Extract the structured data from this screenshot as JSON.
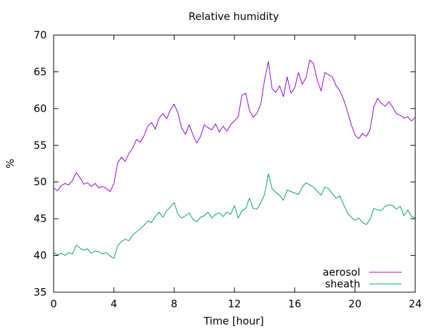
{
  "chart_data": {
    "type": "line",
    "title": "Relative humidity",
    "xlabel": "Time [hour]",
    "ylabel": "%",
    "xlim": [
      0,
      24
    ],
    "ylim": [
      35,
      70
    ],
    "x_ticks": [
      0,
      4,
      8,
      12,
      16,
      20,
      24
    ],
    "y_ticks": [
      35,
      40,
      45,
      50,
      55,
      60,
      65,
      70
    ],
    "grid": false,
    "legend_position": "bottom-right",
    "series": [
      {
        "name": "aerosol",
        "color": "#9400d3",
        "x": [
          0,
          0.25,
          0.5,
          0.75,
          1.0,
          1.25,
          1.5,
          1.75,
          2.0,
          2.25,
          2.5,
          2.75,
          3.0,
          3.25,
          3.5,
          3.75,
          4.0,
          4.25,
          4.5,
          4.75,
          5.0,
          5.25,
          5.5,
          5.75,
          6.0,
          6.25,
          6.5,
          6.75,
          7.0,
          7.25,
          7.5,
          7.75,
          8.0,
          8.25,
          8.5,
          8.75,
          9.0,
          9.25,
          9.5,
          9.75,
          10.0,
          10.25,
          10.5,
          10.75,
          11.0,
          11.25,
          11.5,
          11.75,
          12.0,
          12.25,
          12.5,
          12.75,
          13.0,
          13.25,
          13.5,
          13.75,
          14.0,
          14.25,
          14.5,
          14.75,
          15.0,
          15.25,
          15.5,
          15.75,
          16.0,
          16.25,
          16.5,
          16.75,
          17.0,
          17.25,
          17.5,
          17.75,
          18.0,
          18.25,
          18.5,
          18.75,
          19.0,
          19.25,
          19.5,
          19.75,
          20.0,
          20.25,
          20.5,
          20.75,
          21.0,
          21.25,
          21.5,
          21.75,
          22.0,
          22.25,
          22.5,
          22.75,
          23.0,
          23.25,
          23.5,
          23.75,
          24.0
        ],
        "values": [
          49.2,
          48.8,
          49.5,
          49.8,
          49.6,
          50.2,
          51.3,
          50.6,
          49.7,
          49.9,
          49.4,
          49.8,
          49.2,
          49.4,
          49.1,
          48.7,
          49.8,
          52.6,
          53.4,
          52.8,
          53.9,
          54.6,
          55.8,
          55.4,
          56.3,
          57.6,
          58.1,
          57.2,
          58.7,
          59.3,
          58.6,
          59.8,
          60.6,
          59.4,
          57.3,
          56.5,
          57.8,
          56.4,
          55.3,
          56.2,
          57.8,
          57.4,
          57.1,
          57.9,
          56.8,
          57.6,
          56.9,
          57.8,
          58.3,
          58.9,
          61.8,
          62.1,
          59.7,
          58.8,
          59.4,
          60.6,
          63.9,
          66.4,
          62.7,
          62.2,
          63.1,
          61.6,
          64.3,
          62.1,
          62.8,
          64.9,
          63.3,
          64.2,
          66.6,
          66.1,
          63.8,
          62.4,
          64.9,
          64.6,
          64.3,
          63.1,
          62.4,
          61.2,
          59.6,
          57.8,
          56.4,
          55.9,
          56.6,
          56.2,
          57.1,
          60.2,
          61.4,
          60.7,
          60.3,
          60.9,
          60.2,
          59.3,
          59.1,
          58.7,
          58.9,
          58.3,
          58.8
        ]
      },
      {
        "name": "sheath",
        "color": "#009e73",
        "x": [
          0,
          0.25,
          0.5,
          0.75,
          1.0,
          1.25,
          1.5,
          1.75,
          2.0,
          2.25,
          2.5,
          2.75,
          3.0,
          3.25,
          3.5,
          3.75,
          4.0,
          4.25,
          4.5,
          4.75,
          5.0,
          5.25,
          5.5,
          5.75,
          6.0,
          6.25,
          6.5,
          6.75,
          7.0,
          7.25,
          7.5,
          7.75,
          8.0,
          8.25,
          8.5,
          8.75,
          9.0,
          9.25,
          9.5,
          9.75,
          10.0,
          10.25,
          10.5,
          10.75,
          11.0,
          11.25,
          11.5,
          11.75,
          12.0,
          12.25,
          12.5,
          12.75,
          13.0,
          13.25,
          13.5,
          13.75,
          14.0,
          14.25,
          14.5,
          14.75,
          15.0,
          15.25,
          15.5,
          15.75,
          16.0,
          16.25,
          16.5,
          16.75,
          17.0,
          17.25,
          17.5,
          17.75,
          18.0,
          18.25,
          18.5,
          18.75,
          19.0,
          19.25,
          19.5,
          19.75,
          20.0,
          20.25,
          20.5,
          20.75,
          21.0,
          21.25,
          21.5,
          21.75,
          22.0,
          22.25,
          22.5,
          22.75,
          23.0,
          23.25,
          23.5,
          23.75,
          24.0
        ],
        "values": [
          40.4,
          40.1,
          40.3,
          40.0,
          40.4,
          40.2,
          41.4,
          41.0,
          40.7,
          40.9,
          40.3,
          40.6,
          40.5,
          40.2,
          40.4,
          39.9,
          39.6,
          41.3,
          41.9,
          42.2,
          42.0,
          42.8,
          43.2,
          43.6,
          44.1,
          44.7,
          44.5,
          45.3,
          45.9,
          45.2,
          46.1,
          46.6,
          47.2,
          45.6,
          45.1,
          45.4,
          45.8,
          44.9,
          44.6,
          45.2,
          45.4,
          45.9,
          45.1,
          45.6,
          45.8,
          45.3,
          45.9,
          45.6,
          46.8,
          45.1,
          46.1,
          46.4,
          47.8,
          46.4,
          46.3,
          47.2,
          48.3,
          51.1,
          49.1,
          48.6,
          48.2,
          47.5,
          48.9,
          48.7,
          48.5,
          48.3,
          49.3,
          49.9,
          49.6,
          49.3,
          48.7,
          48.2,
          49.3,
          49.1,
          48.4,
          47.8,
          48.1,
          46.9,
          45.8,
          45.2,
          44.8,
          45.1,
          44.5,
          44.2,
          44.9,
          46.4,
          46.2,
          46.1,
          46.7,
          46.9,
          46.8,
          46.3,
          46.7,
          45.4,
          46.2,
          45.3,
          45.1
        ]
      }
    ]
  }
}
